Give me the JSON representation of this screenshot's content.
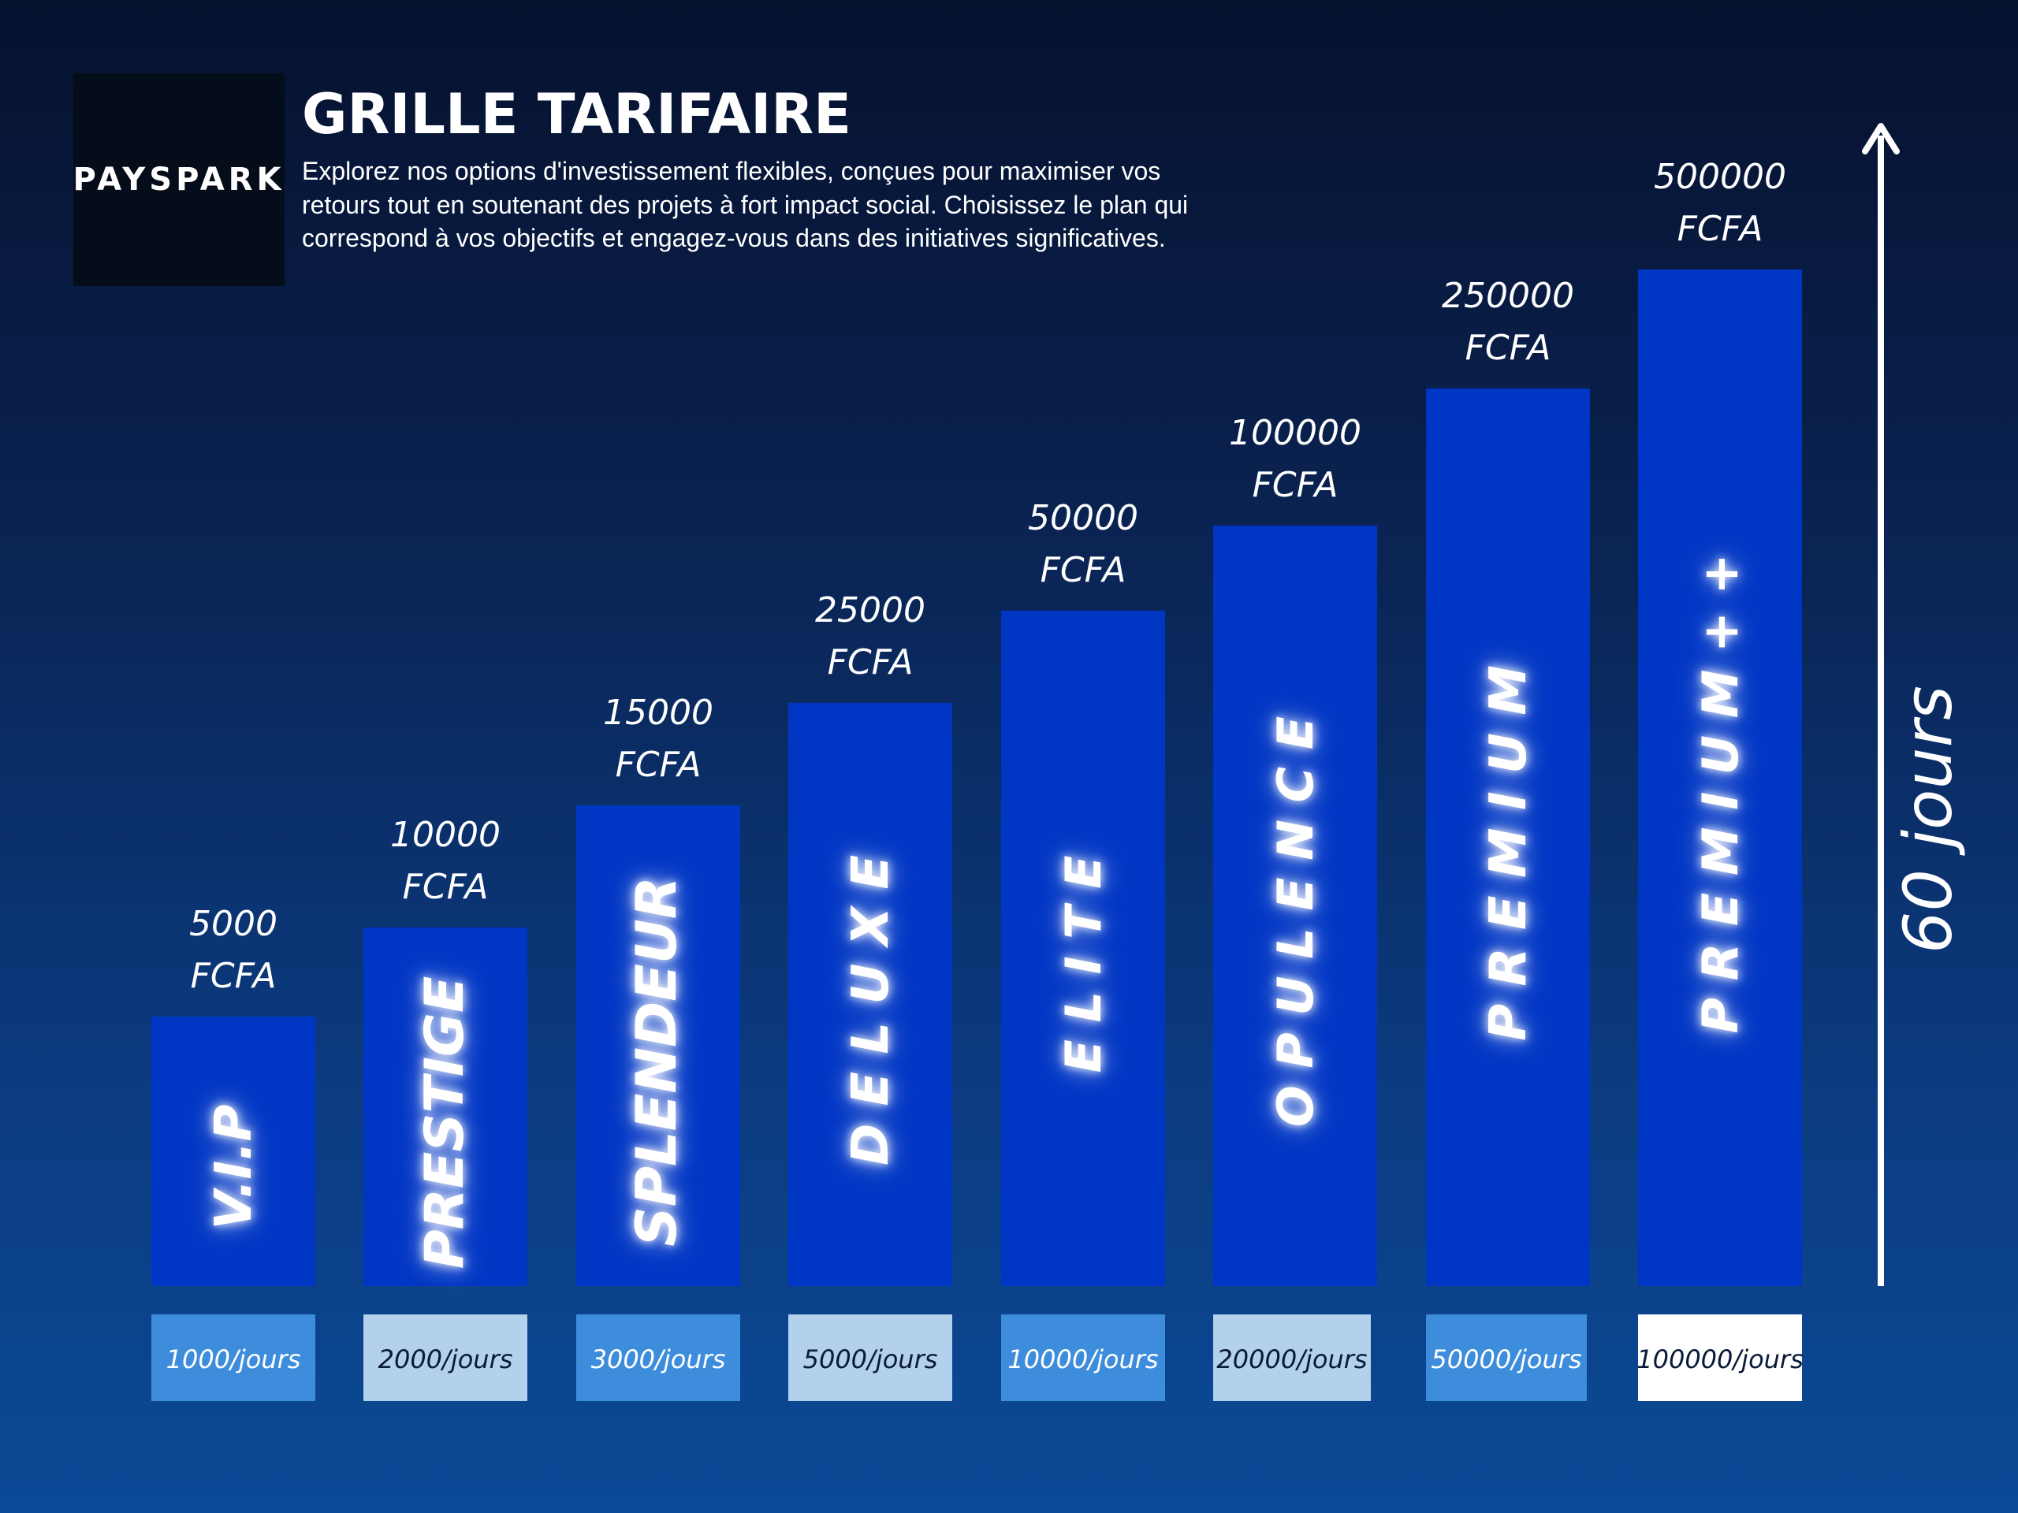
{
  "brand": {
    "logo_text": "PAYSPARK"
  },
  "header": {
    "title": "GRILLE TARIFAIRE",
    "description": "Explorez nos options d'investissement flexibles, conçues pour maximiser vos retours tout en soutenant des projets à fort impact social. Choisissez le plan qui correspond à vos objectifs et engagez-vous dans des initiatives significatives."
  },
  "duration_label": "60 jours",
  "colors": {
    "bar": "#0036c4",
    "daily_box_blue": "#3d8ddc",
    "daily_box_light": "#b3d0ec",
    "daily_box_white": "#ffffff",
    "daily_text_dark": "#0a1a3a"
  },
  "chart_data": {
    "type": "bar",
    "categories": [
      "V.I.P",
      "PRESTIGE",
      "SPLENDEUR",
      "DE LUXE",
      "ELITE",
      "OPULENCE",
      "PREMIUM",
      "PREMIUM++"
    ],
    "values": [
      5000,
      10000,
      15000,
      25000,
      50000,
      100000,
      250000,
      500000
    ],
    "unit": "FCFA",
    "price_labels": [
      [
        "5000",
        "FCFA"
      ],
      [
        "10000",
        "FCFA"
      ],
      [
        "15000",
        "FCFA"
      ],
      [
        "25000",
        "FCFA"
      ],
      [
        "50000",
        "FCFA"
      ],
      [
        "100000",
        "FCFA"
      ],
      [
        "250000",
        "FCFA"
      ],
      [
        "500000",
        "FCFA"
      ]
    ],
    "bar_labels": [
      "V.I.P",
      "PRESTIGE",
      "SPLENDEUR",
      "D E  L U X E",
      "E L I T E",
      "O P U L E N C E",
      "P R E M I U M",
      "P R E M I U M + +"
    ],
    "daily_values": [
      1000,
      2000,
      3000,
      5000,
      10000,
      20000,
      50000,
      100000
    ],
    "daily_labels": [
      "1000/jours",
      "2000/jours",
      "3000/jours",
      "5000/jours",
      "10000/jours",
      "20000/jours",
      "50000/jours",
      "100000/jours"
    ],
    "daily_box_styles": [
      "blue",
      "light",
      "blue",
      "light",
      "blue",
      "light",
      "blue",
      "white"
    ],
    "scale": "ordinal, heights increase monotonically (not proportional)",
    "grid": false,
    "legend": "none"
  }
}
